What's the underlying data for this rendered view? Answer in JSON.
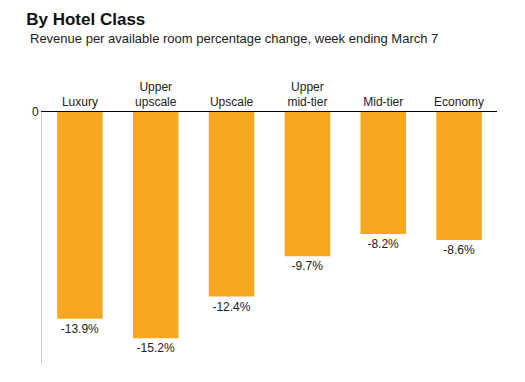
{
  "chart_data": {
    "type": "bar",
    "title": "By Hotel Class",
    "subtitle": "Revenue per available room percentage change, week ending March 7",
    "categories": [
      "Luxury",
      "Upper upscale",
      "Upscale",
      "Upper mid-tier",
      "Mid-tier",
      "Economy"
    ],
    "values": [
      -13.9,
      -15.2,
      -12.4,
      -9.7,
      -8.2,
      -8.6
    ],
    "value_labels": [
      "-13.9%",
      "-15.2%",
      "-12.4%",
      "-9.7%",
      "-8.2%",
      "-8.6%"
    ],
    "data_labels": true,
    "color": "#f8a723",
    "ylim": [
      -17,
      0
    ],
    "yticks": [
      0
    ],
    "grid": false
  }
}
